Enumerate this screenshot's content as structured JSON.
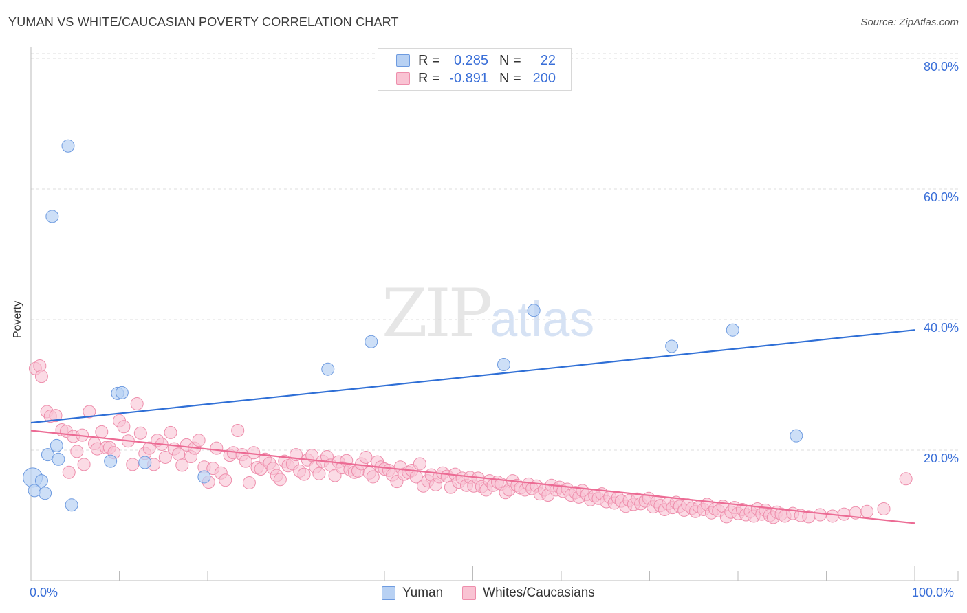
{
  "header": {
    "title": "YUMAN VS WHITE/CAUCASIAN POVERTY CORRELATION CHART",
    "source": "Source: ZipAtlas.com"
  },
  "watermark": {
    "zip": "ZIP",
    "atlas": "atlas"
  },
  "legend_top": {
    "rows": [
      {
        "r_label": "R =",
        "r_value": "0.285",
        "n_label": "N =",
        "n_value": "22"
      },
      {
        "r_label": "R =",
        "r_value": "-0.891",
        "n_label": "N =",
        "n_value": "200"
      }
    ]
  },
  "legend_bottom": {
    "items": [
      "Yuman",
      "Whites/Caucasians"
    ]
  },
  "axis_labels": {
    "x_min": "0.0%",
    "x_max": "100.0%",
    "y_ticks": [
      "20.0%",
      "40.0%",
      "60.0%",
      "80.0%"
    ]
  },
  "colors": {
    "yuman_fill": "#b8d1f3",
    "yuman_stroke": "#6e9be0",
    "yuman_line": "#2f6fd6",
    "white_fill": "#f9c3d3",
    "white_stroke": "#ee8eac",
    "white_line": "#ec6b94",
    "accent_text": "#3a6fd8"
  },
  "chart_data": {
    "type": "scatter",
    "title": "YUMAN VS WHITE/CAUCASIAN POVERTY CORRELATION CHART",
    "xlabel": "",
    "ylabel": "Poverty",
    "xlim": [
      0,
      100
    ],
    "ylim": [
      0,
      82
    ],
    "y_ticks": [
      20,
      40,
      60,
      80
    ],
    "grid": true,
    "series": [
      {
        "name": "Yuman",
        "R": 0.285,
        "N": 22,
        "trend": {
          "x0": 0,
          "y0": 24.2,
          "x1": 100,
          "y1": 38.4
        },
        "points": [
          [
            0.2,
            15.8
          ],
          [
            0.4,
            13.8
          ],
          [
            1.2,
            15.3
          ],
          [
            1.6,
            13.4
          ],
          [
            1.9,
            19.3
          ],
          [
            2.4,
            55.8
          ],
          [
            2.9,
            20.7
          ],
          [
            3.1,
            18.6
          ],
          [
            4.2,
            66.6
          ],
          [
            4.6,
            11.6
          ],
          [
            9.0,
            18.3
          ],
          [
            9.8,
            28.7
          ],
          [
            10.3,
            28.8
          ],
          [
            12.9,
            18.1
          ],
          [
            19.6,
            15.9
          ],
          [
            33.6,
            32.4
          ],
          [
            38.5,
            36.6
          ],
          [
            53.5,
            33.1
          ],
          [
            56.9,
            41.4
          ],
          [
            72.5,
            35.9
          ],
          [
            79.4,
            38.4
          ],
          [
            86.6,
            22.2
          ]
        ]
      },
      {
        "name": "Whites/Caucasians",
        "R": -0.891,
        "N": 200,
        "trend": {
          "x0": 0,
          "y0": 23.0,
          "x1": 100,
          "y1": 8.8
        },
        "points": [
          [
            0.5,
            32.5
          ],
          [
            1.0,
            32.9
          ],
          [
            1.2,
            31.3
          ],
          [
            1.8,
            25.9
          ],
          [
            2.2,
            25.2
          ],
          [
            2.8,
            25.3
          ],
          [
            3.5,
            23.1
          ],
          [
            4.0,
            22.9
          ],
          [
            4.3,
            16.6
          ],
          [
            4.8,
            22.1
          ],
          [
            5.2,
            19.8
          ],
          [
            5.8,
            22.3
          ],
          [
            6.0,
            17.8
          ],
          [
            6.6,
            25.9
          ],
          [
            7.2,
            21.0
          ],
          [
            7.5,
            20.2
          ],
          [
            8.0,
            22.8
          ],
          [
            8.5,
            20.4
          ],
          [
            8.9,
            20.4
          ],
          [
            9.4,
            19.6
          ],
          [
            10.0,
            24.5
          ],
          [
            10.5,
            23.6
          ],
          [
            11.0,
            21.4
          ],
          [
            11.5,
            17.8
          ],
          [
            12.0,
            27.1
          ],
          [
            12.4,
            22.6
          ],
          [
            12.9,
            19.5
          ],
          [
            13.4,
            20.3
          ],
          [
            13.9,
            17.8
          ],
          [
            14.3,
            21.5
          ],
          [
            14.8,
            20.9
          ],
          [
            15.2,
            18.9
          ],
          [
            15.8,
            22.7
          ],
          [
            16.2,
            20.2
          ],
          [
            16.7,
            19.4
          ],
          [
            17.1,
            17.7
          ],
          [
            17.6,
            20.8
          ],
          [
            18.1,
            19.0
          ],
          [
            18.5,
            20.3
          ],
          [
            19.0,
            21.5
          ],
          [
            19.6,
            17.4
          ],
          [
            20.1,
            15.1
          ],
          [
            20.6,
            17.2
          ],
          [
            21.0,
            20.3
          ],
          [
            21.5,
            16.5
          ],
          [
            22.0,
            15.4
          ],
          [
            22.5,
            19.2
          ],
          [
            22.9,
            19.6
          ],
          [
            23.4,
            23.0
          ],
          [
            23.9,
            19.3
          ],
          [
            24.3,
            18.3
          ],
          [
            24.7,
            15.0
          ],
          [
            25.2,
            19.6
          ],
          [
            25.6,
            17.3
          ],
          [
            26.0,
            17.1
          ],
          [
            26.5,
            18.6
          ],
          [
            27.0,
            18.0
          ],
          [
            27.4,
            17.2
          ],
          [
            27.8,
            16.1
          ],
          [
            28.2,
            15.5
          ],
          [
            28.7,
            18.3
          ],
          [
            29.1,
            17.6
          ],
          [
            29.6,
            17.9
          ],
          [
            30.0,
            19.3
          ],
          [
            30.4,
            16.8
          ],
          [
            30.9,
            16.3
          ],
          [
            31.3,
            18.5
          ],
          [
            31.8,
            19.2
          ],
          [
            32.2,
            17.4
          ],
          [
            32.6,
            16.4
          ],
          [
            33.0,
            18.3
          ],
          [
            33.5,
            19.0
          ],
          [
            33.9,
            17.7
          ],
          [
            34.4,
            16.1
          ],
          [
            34.8,
            18.2
          ],
          [
            35.2,
            17.3
          ],
          [
            35.7,
            18.4
          ],
          [
            36.1,
            17.0
          ],
          [
            36.6,
            16.6
          ],
          [
            37.0,
            16.8
          ],
          [
            37.4,
            17.9
          ],
          [
            37.9,
            18.9
          ],
          [
            38.3,
            16.5
          ],
          [
            38.7,
            15.9
          ],
          [
            39.2,
            18.2
          ],
          [
            39.6,
            17.4
          ],
          [
            40.0,
            17.1
          ],
          [
            40.5,
            16.9
          ],
          [
            40.9,
            16.2
          ],
          [
            41.4,
            15.2
          ],
          [
            41.8,
            17.4
          ],
          [
            42.2,
            16.3
          ],
          [
            42.7,
            16.6
          ],
          [
            43.1,
            16.9
          ],
          [
            43.6,
            15.9
          ],
          [
            44.0,
            17.9
          ],
          [
            44.4,
            14.5
          ],
          [
            44.9,
            15.3
          ],
          [
            45.3,
            16.2
          ],
          [
            45.8,
            14.7
          ],
          [
            46.2,
            15.9
          ],
          [
            46.6,
            16.5
          ],
          [
            47.1,
            16.0
          ],
          [
            47.5,
            14.3
          ],
          [
            48.0,
            16.3
          ],
          [
            48.4,
            15.1
          ],
          [
            48.8,
            15.7
          ],
          [
            49.3,
            14.6
          ],
          [
            49.7,
            15.8
          ],
          [
            50.1,
            14.5
          ],
          [
            50.6,
            15.7
          ],
          [
            51.0,
            14.4
          ],
          [
            51.5,
            13.9
          ],
          [
            51.9,
            15.3
          ],
          [
            52.3,
            14.6
          ],
          [
            52.8,
            15.1
          ],
          [
            53.2,
            14.8
          ],
          [
            53.7,
            13.5
          ],
          [
            54.1,
            13.9
          ],
          [
            54.5,
            15.3
          ],
          [
            55.0,
            14.6
          ],
          [
            55.4,
            14.2
          ],
          [
            55.9,
            13.9
          ],
          [
            56.3,
            14.8
          ],
          [
            56.7,
            14.1
          ],
          [
            57.2,
            14.5
          ],
          [
            57.6,
            13.3
          ],
          [
            58.1,
            13.9
          ],
          [
            58.5,
            13.1
          ],
          [
            58.9,
            14.6
          ],
          [
            59.4,
            13.9
          ],
          [
            59.8,
            14.3
          ],
          [
            60.2,
            13.7
          ],
          [
            60.7,
            14.0
          ],
          [
            61.1,
            13.1
          ],
          [
            61.6,
            13.5
          ],
          [
            62.0,
            12.8
          ],
          [
            62.4,
            13.8
          ],
          [
            62.9,
            13.2
          ],
          [
            63.3,
            12.4
          ],
          [
            63.8,
            13.0
          ],
          [
            64.2,
            12.6
          ],
          [
            64.6,
            13.3
          ],
          [
            65.1,
            12.1
          ],
          [
            65.5,
            12.8
          ],
          [
            66.0,
            11.9
          ],
          [
            66.4,
            12.7
          ],
          [
            66.8,
            12.2
          ],
          [
            67.3,
            11.4
          ],
          [
            67.7,
            12.3
          ],
          [
            68.2,
            11.7
          ],
          [
            68.6,
            12.5
          ],
          [
            69.0,
            11.8
          ],
          [
            69.5,
            12.2
          ],
          [
            69.9,
            12.6
          ],
          [
            70.4,
            11.3
          ],
          [
            70.8,
            12.1
          ],
          [
            71.2,
            11.5
          ],
          [
            71.7,
            10.9
          ],
          [
            72.1,
            11.8
          ],
          [
            72.6,
            11.2
          ],
          [
            73.0,
            12.0
          ],
          [
            73.4,
            11.4
          ],
          [
            73.9,
            10.8
          ],
          [
            74.3,
            11.6
          ],
          [
            74.8,
            11.1
          ],
          [
            75.2,
            10.6
          ],
          [
            75.6,
            11.3
          ],
          [
            76.1,
            10.9
          ],
          [
            76.5,
            11.7
          ],
          [
            77.0,
            10.4
          ],
          [
            77.4,
            11.0
          ],
          [
            77.8,
            10.7
          ],
          [
            78.3,
            11.4
          ],
          [
            78.7,
            9.8
          ],
          [
            79.2,
            10.5
          ],
          [
            79.6,
            11.2
          ],
          [
            80.0,
            10.3
          ],
          [
            80.5,
            10.9
          ],
          [
            80.9,
            10.1
          ],
          [
            81.4,
            10.6
          ],
          [
            81.8,
            9.9
          ],
          [
            82.2,
            11.0
          ],
          [
            82.7,
            10.2
          ],
          [
            83.1,
            10.8
          ],
          [
            83.6,
            10.0
          ],
          [
            84.0,
            9.7
          ],
          [
            84.4,
            10.5
          ],
          [
            84.9,
            10.2
          ],
          [
            85.3,
            9.9
          ],
          [
            86.2,
            10.3
          ],
          [
            87.1,
            10.0
          ],
          [
            88.0,
            9.8
          ],
          [
            89.3,
            10.1
          ],
          [
            90.7,
            9.9
          ],
          [
            92.0,
            10.2
          ],
          [
            93.3,
            10.4
          ],
          [
            94.6,
            10.6
          ],
          [
            96.5,
            11.0
          ],
          [
            99.0,
            15.6
          ]
        ]
      }
    ]
  }
}
